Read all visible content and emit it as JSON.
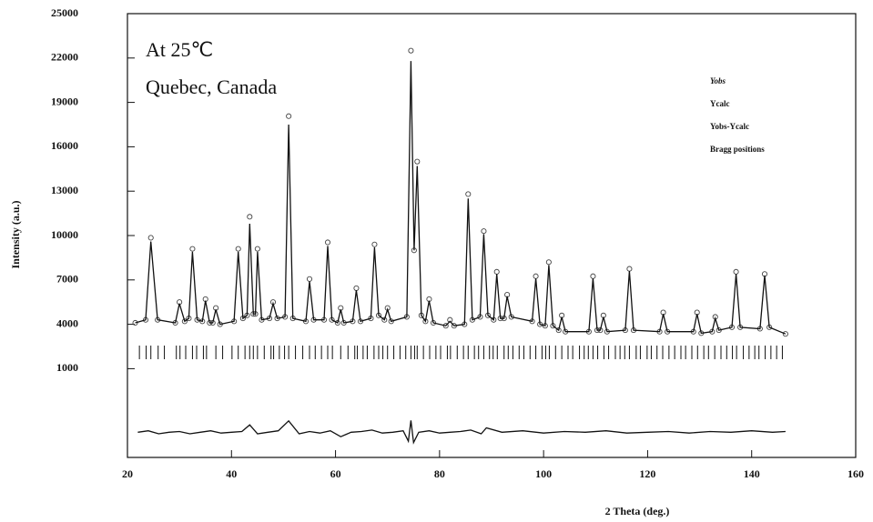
{
  "chart_data": {
    "type": "line",
    "xlabel": "2 Theta (deg.)",
    "ylabel": "Intensity (a.u.)",
    "annotations": [
      "At 25℃",
      "Quebec, Canada"
    ],
    "legend": "upper right",
    "grid": false,
    "xlim": [
      20,
      160
    ],
    "xticks": [
      20,
      40,
      60,
      80,
      100,
      120,
      140,
      160
    ],
    "ylim": [
      -5000,
      25000
    ],
    "yticks": [
      1000,
      4000,
      7000,
      10000,
      13000,
      16000,
      19000,
      22000,
      25000
    ],
    "x": [
      21.5,
      23.5,
      24.5,
      25.8,
      29.2,
      30,
      31,
      31.8,
      32.5,
      33.4,
      34.4,
      35,
      35.8,
      36.4,
      37,
      37.8,
      40.5,
      41.3,
      42.2,
      43,
      43.5,
      44.2,
      44.6,
      45,
      45.8,
      47.3,
      48,
      48.8,
      50.3,
      51,
      51.8,
      54.3,
      55,
      55.8,
      57.8,
      58.5,
      59.3,
      60.4,
      61,
      61.6,
      63.3,
      64,
      64.8,
      66.8,
      67.5,
      68.3,
      69.4,
      70,
      70.7,
      73.7,
      74.5,
      75.1,
      75.7,
      76.5,
      77.3,
      78,
      78.8,
      81.2,
      82,
      82.8,
      84.8,
      85.5,
      86.3,
      87.8,
      88.5,
      89.3,
      90.4,
      91,
      91.7,
      92.4,
      93,
      93.8,
      97.8,
      98.5,
      99.3,
      100.3,
      101,
      101.8,
      102.9,
      103.5,
      104.2,
      108.7,
      109.5,
      110.3,
      110.9,
      111.5,
      112.2,
      115.7,
      116.5,
      117.3,
      122.3,
      123,
      123.8,
      128.8,
      129.5,
      130.3,
      132.4,
      133,
      133.7,
      136.2,
      137,
      137.8,
      141.6,
      142.5,
      143.4,
      146.5
    ],
    "series": [
      {
        "name": "Yobs",
        "style": "markers",
        "color": "#444444",
        "values": [
          4100,
          4300,
          9850,
          4300,
          4100,
          5500,
          4200,
          4400,
          9100,
          4300,
          4200,
          5700,
          4100,
          4100,
          5100,
          4000,
          4200,
          9100,
          4400,
          4600,
          11270,
          4700,
          4700,
          9100,
          4300,
          4400,
          5500,
          4400,
          4500,
          18070,
          4400,
          4200,
          7060,
          4300,
          4300,
          9540,
          4300,
          4100,
          5100,
          4100,
          4200,
          6440,
          4200,
          4400,
          9400,
          4600,
          4300,
          5100,
          4200,
          4500,
          22500,
          9000,
          15000,
          4600,
          4200,
          5700,
          4100,
          3900,
          4300,
          3900,
          4000,
          12800,
          4300,
          4500,
          10300,
          4600,
          4300,
          7550,
          4400,
          4400,
          6000,
          4500,
          4200,
          7250,
          4000,
          3900,
          8200,
          3900,
          3600,
          4600,
          3500,
          3500,
          7250,
          3600,
          3600,
          4600,
          3500,
          3600,
          7750,
          3600,
          3500,
          4800,
          3500,
          3500,
          4800,
          3400,
          3500,
          4500,
          3600,
          3800,
          7550,
          3800,
          3700,
          7400,
          3800,
          3350
        ]
      },
      {
        "name": "Ycalc",
        "style": "line",
        "color": "#111111",
        "values": [
          4100,
          4300,
          9600,
          4300,
          4100,
          5400,
          4200,
          4400,
          8900,
          4300,
          4200,
          5600,
          4100,
          4100,
          5000,
          4000,
          4200,
          8900,
          4400,
          4600,
          10800,
          4700,
          4700,
          8900,
          4300,
          4400,
          5400,
          4400,
          4500,
          17500,
          4400,
          4200,
          6900,
          4300,
          4300,
          9300,
          4300,
          4100,
          5000,
          4100,
          4200,
          6300,
          4200,
          4400,
          9200,
          4600,
          4300,
          5000,
          4200,
          4500,
          21800,
          9000,
          14700,
          4600,
          4200,
          5600,
          4100,
          3900,
          4200,
          3900,
          4000,
          12500,
          4300,
          4500,
          10100,
          4600,
          4300,
          7400,
          4400,
          4400,
          5900,
          4500,
          4200,
          7100,
          4000,
          3900,
          8000,
          3900,
          3600,
          4500,
          3500,
          3500,
          7100,
          3600,
          3600,
          4500,
          3500,
          3600,
          7600,
          3600,
          3500,
          4700,
          3500,
          3500,
          4700,
          3400,
          3500,
          4400,
          3600,
          3800,
          7400,
          3800,
          3700,
          7300,
          3800,
          3350
        ]
      },
      {
        "name": "Yobs-Ycalc",
        "style": "line",
        "color": "#111111",
        "x": [
          22,
          24,
          26,
          28,
          30,
          32,
          34,
          36,
          38,
          40,
          42,
          43.5,
          45,
          47,
          49,
          51,
          53,
          55,
          57,
          59,
          61,
          63,
          65,
          67,
          69,
          71,
          73,
          74,
          74.5,
          75,
          76,
          78,
          80,
          82,
          84,
          86,
          88,
          89,
          92,
          96,
          100,
          104,
          108,
          112,
          116,
          120,
          124,
          128,
          132,
          136,
          140,
          144,
          146.5
        ],
        "values": [
          -3300,
          -3200,
          -3400,
          -3300,
          -3250,
          -3400,
          -3300,
          -3200,
          -3350,
          -3300,
          -3250,
          -2800,
          -3400,
          -3300,
          -3200,
          -2530,
          -3400,
          -3250,
          -3350,
          -3200,
          -3600,
          -3300,
          -3250,
          -3150,
          -3350,
          -3300,
          -3200,
          -3900,
          -2500,
          -4000,
          -3300,
          -3200,
          -3350,
          -3300,
          -3250,
          -3150,
          -3400,
          -3000,
          -3300,
          -3200,
          -3350,
          -3250,
          -3300,
          -3200,
          -3350,
          -3300,
          -3250,
          -3350,
          -3250,
          -3300,
          -3200,
          -3300,
          -3250
        ]
      },
      {
        "name": "Bragg positions",
        "style": "ticks",
        "color": "#111111",
        "x": [
          22.3,
          23.6,
          24.5,
          25.9,
          27.1,
          29.4,
          30.1,
          31.2,
          32.5,
          33.3,
          34.6,
          35.2,
          37.0,
          38.3,
          40.1,
          41.3,
          42.6,
          43.5,
          44.2,
          45.0,
          46.3,
          47.6,
          48.1,
          49.2,
          50.2,
          51.0,
          52.3,
          53.7,
          55.0,
          56.1,
          57.3,
          58.5,
          59.4,
          61.0,
          62.4,
          63.7,
          64.2,
          65.3,
          66.1,
          67.4,
          68.3,
          69.1,
          70.0,
          71.2,
          72.4,
          73.5,
          74.5,
          75.2,
          75.7,
          76.9,
          78.1,
          79.3,
          80.2,
          81.5,
          82.1,
          83.4,
          84.6,
          85.5,
          86.7,
          87.5,
          88.5,
          89.6,
          90.3,
          91.1,
          92.4,
          93.2,
          94.1,
          95.3,
          96.2,
          97.4,
          98.5,
          99.7,
          100.4,
          101.1,
          102.3,
          103.5,
          104.7,
          105.6,
          106.9,
          107.8,
          108.6,
          109.5,
          110.4,
          111.6,
          112.5,
          113.8,
          114.7,
          115.6,
          116.5,
          117.8,
          118.6,
          119.9,
          120.7,
          121.8,
          122.9,
          124.1,
          125.2,
          126.4,
          127.3,
          128.5,
          129.6,
          130.8,
          131.7,
          132.9,
          134.1,
          135.2,
          136.3,
          137.1,
          138.4,
          139.5,
          140.6,
          141.4,
          142.6,
          143.7,
          144.8,
          145.9
        ]
      }
    ]
  }
}
